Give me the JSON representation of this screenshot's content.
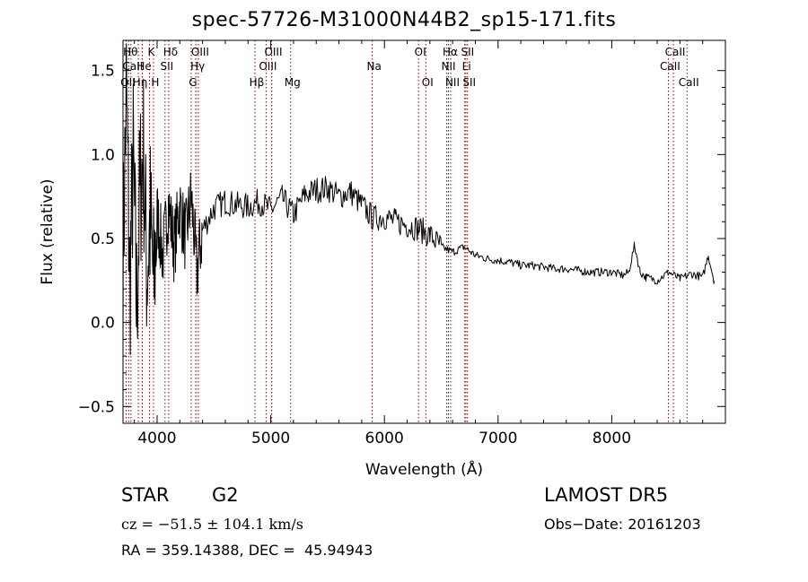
{
  "chart_data": {
    "type": "line",
    "title": "spec-57726-M31000N44B2_sp15-171.fits",
    "xlabel": "Wavelength (Å)",
    "ylabel": "Flux (relative)",
    "xlim": [
      3700,
      9000
    ],
    "ylim": [
      -0.6,
      1.68
    ],
    "x_ticks": [
      4000,
      5000,
      6000,
      7000,
      8000
    ],
    "y_ticks": [
      -0.5,
      0.0,
      0.5,
      1.0,
      1.5
    ],
    "x_tick_labels": [
      "4000",
      "5000",
      "6000",
      "7000",
      "8000"
    ],
    "y_tick_labels": [
      "−0.5",
      "0.0",
      "0.5",
      "1.0",
      "1.5"
    ],
    "line_color": "#000000",
    "marker_color": "#8b0000",
    "series": [
      {
        "x": [
          3700,
          3730,
          3760,
          3790,
          3820,
          3850,
          3880,
          3910,
          3940,
          3970,
          4000,
          4050,
          4100,
          4150,
          4200,
          4250,
          4300,
          4350,
          4400,
          4500,
          4600,
          4700,
          4800,
          4900,
          5000,
          5100,
          5200,
          5300,
          5400,
          5500,
          5600,
          5700,
          5800,
          5900,
          6000,
          6100,
          6200,
          6300,
          6400,
          6500,
          6600,
          6700,
          6800,
          6900,
          7000,
          7100,
          7200,
          7300,
          7400,
          7500,
          7600,
          7700,
          7800,
          7900,
          8000,
          8100,
          8150,
          8200,
          8250,
          8300,
          8400,
          8500,
          8600,
          8700,
          8800,
          8850,
          8900
        ],
        "y": [
          0.35,
          1.4,
          0.2,
          0.95,
          0.1,
          0.8,
          1.0,
          0.3,
          0.6,
          0.2,
          0.65,
          0.4,
          0.7,
          0.45,
          0.7,
          0.5,
          0.75,
          0.3,
          0.55,
          0.68,
          0.72,
          0.7,
          0.69,
          0.72,
          0.67,
          0.74,
          0.64,
          0.76,
          0.79,
          0.8,
          0.75,
          0.78,
          0.7,
          0.62,
          0.63,
          0.6,
          0.58,
          0.56,
          0.52,
          0.45,
          0.42,
          0.45,
          0.4,
          0.38,
          0.37,
          0.36,
          0.34,
          0.34,
          0.33,
          0.32,
          0.32,
          0.31,
          0.3,
          0.3,
          0.3,
          0.28,
          0.3,
          0.46,
          0.3,
          0.27,
          0.25,
          0.3,
          0.26,
          0.29,
          0.27,
          0.4,
          0.25
        ]
      }
    ],
    "lines": [
      {
        "x": 3727,
        "label": "OII",
        "row": 3
      },
      {
        "x": 3750,
        "label": "Hθ",
        "row": 1
      },
      {
        "x": 3770,
        "label": "CaII",
        "row": 2
      },
      {
        "x": 3835,
        "label": "Hη",
        "row": 3
      },
      {
        "x": 3870,
        "label": "He",
        "row": 2
      },
      {
        "x": 3933,
        "label": "K",
        "row": 1
      },
      {
        "x": 3968,
        "label": "H",
        "row": 3
      },
      {
        "x": 4070,
        "label": "SII",
        "row": 2
      },
      {
        "x": 4102,
        "label": "Hδ",
        "row": 1
      },
      {
        "x": 4300,
        "label": "G",
        "row": 3
      },
      {
        "x": 4341,
        "label": "Hγ",
        "row": 2
      },
      {
        "x": 4363,
        "label": "OIII",
        "row": 1
      },
      {
        "x": 4861,
        "label": "Hβ",
        "row": 3
      },
      {
        "x": 4959,
        "label": "OIII",
        "row": 2
      },
      {
        "x": 5007,
        "label": "OIII",
        "row": 1
      },
      {
        "x": 5175,
        "label": "Mg",
        "row": 3
      },
      {
        "x": 5893,
        "label": "Na",
        "row": 2
      },
      {
        "x": 6300,
        "label": "OI",
        "row": 1
      },
      {
        "x": 6364,
        "label": "OI",
        "row": 3
      },
      {
        "x": 6548,
        "label": "NII",
        "row": 2
      },
      {
        "x": 6563,
        "label": "Hα",
        "row": 1
      },
      {
        "x": 6583,
        "label": "NII",
        "row": 3
      },
      {
        "x": 6707,
        "label": "Li",
        "row": 2
      },
      {
        "x": 6716,
        "label": "SII",
        "row": 1
      },
      {
        "x": 6731,
        "label": "SII",
        "row": 3
      },
      {
        "x": 8498,
        "label": "CaII",
        "row": 2
      },
      {
        "x": 8542,
        "label": "CaII",
        "row": 1
      },
      {
        "x": 8662,
        "label": "CaII",
        "row": 3
      }
    ]
  },
  "info": {
    "class": "STAR",
    "subclass": "G2",
    "survey": "LAMOST DR5",
    "cz": "cz = −51.5 ± 104.1 km/s",
    "obs_date": "Obs−Date: 20161203",
    "coords": "RA = 359.14388, DEC =  45.94943"
  }
}
